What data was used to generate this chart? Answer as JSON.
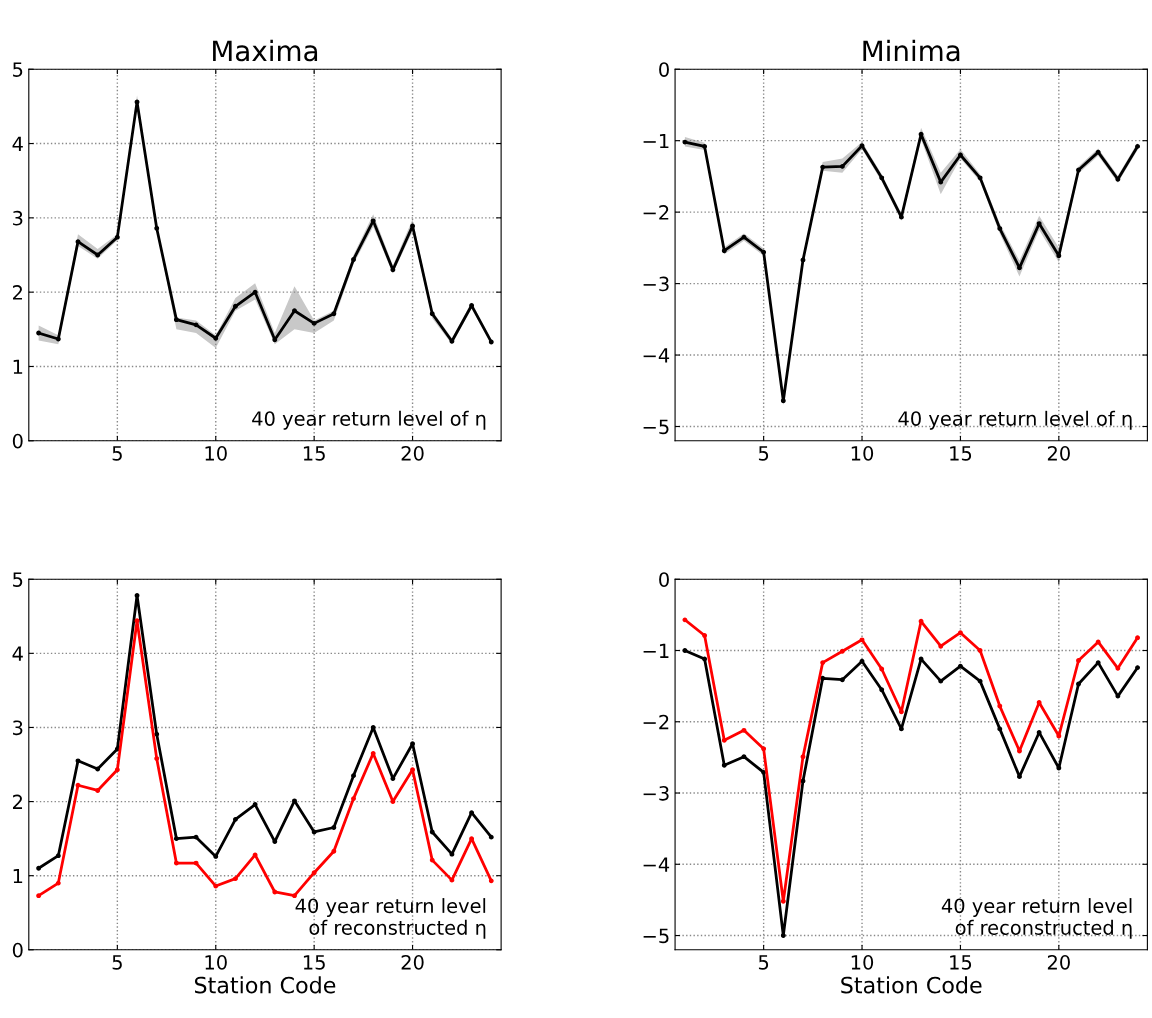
{
  "chart_data": [
    {
      "type": "line",
      "title": "Maxima",
      "x": [
        1,
        2,
        3,
        4,
        5,
        6,
        7,
        8,
        9,
        10,
        11,
        12,
        13,
        14,
        15,
        16,
        17,
        18,
        19,
        20,
        21,
        22,
        23,
        24
      ],
      "xlim": [
        0.5,
        24.5
      ],
      "xticks": [
        5,
        10,
        15,
        20
      ],
      "ylim": [
        0,
        5
      ],
      "yticks": [
        0,
        1,
        2,
        3,
        4,
        5
      ],
      "grid": true,
      "marker": "circle",
      "line_style": "solid",
      "annotations": [
        "40 year return level of η"
      ],
      "series": [
        {
          "color": "#000000",
          "values": [
            1.45,
            1.37,
            2.68,
            2.5,
            2.74,
            4.56,
            2.86,
            1.63,
            1.56,
            1.38,
            1.81,
            2.0,
            1.36,
            1.75,
            1.58,
            1.71,
            2.44,
            2.96,
            2.3,
            2.89,
            1.71,
            1.34,
            1.82,
            1.33
          ],
          "lower": [
            1.35,
            1.3,
            2.62,
            2.45,
            2.7,
            4.5,
            2.83,
            1.5,
            1.45,
            1.25,
            1.75,
            1.9,
            1.3,
            1.5,
            1.45,
            1.62,
            2.38,
            2.88,
            2.25,
            2.82,
            1.65,
            1.3,
            1.78,
            1.3
          ],
          "upper": [
            1.55,
            1.42,
            2.78,
            2.58,
            2.78,
            4.65,
            2.9,
            1.66,
            1.62,
            1.42,
            1.92,
            2.12,
            1.45,
            2.08,
            1.62,
            1.75,
            2.5,
            3.05,
            2.36,
            2.98,
            1.75,
            1.38,
            1.86,
            1.36
          ]
        }
      ]
    },
    {
      "type": "line",
      "title": "Minima",
      "x": [
        1,
        2,
        3,
        4,
        5,
        6,
        7,
        8,
        9,
        10,
        11,
        12,
        13,
        14,
        15,
        16,
        17,
        18,
        19,
        20,
        21,
        22,
        23,
        24
      ],
      "xlim": [
        0.5,
        24.5
      ],
      "xticks": [
        5,
        10,
        15,
        20
      ],
      "ylim": [
        -5.2,
        0
      ],
      "yticks": [
        -5,
        -4,
        -3,
        -2,
        -1,
        0
      ],
      "grid": true,
      "marker": "circle",
      "line_style": "solid",
      "annotations": [
        "40 year return level of η"
      ],
      "series": [
        {
          "color": "#000000",
          "values": [
            -1.02,
            -1.08,
            -2.54,
            -2.35,
            -2.56,
            -4.64,
            -2.67,
            -1.37,
            -1.36,
            -1.07,
            -1.52,
            -2.07,
            -0.91,
            -1.58,
            -1.2,
            -1.52,
            -2.23,
            -2.78,
            -2.16,
            -2.61,
            -1.41,
            -1.16,
            -1.54,
            -1.08
          ],
          "lower": [
            -1.08,
            -1.13,
            -2.59,
            -2.4,
            -2.61,
            -4.7,
            -2.72,
            -1.42,
            -1.45,
            -1.12,
            -1.57,
            -2.12,
            -0.98,
            -1.75,
            -1.25,
            -1.57,
            -2.3,
            -2.9,
            -2.25,
            -2.7,
            -1.46,
            -1.21,
            -1.59,
            -1.13
          ],
          "upper": [
            -0.95,
            -1.03,
            -2.49,
            -2.3,
            -2.51,
            -4.58,
            -2.62,
            -1.3,
            -1.25,
            -1.02,
            -1.47,
            -2.02,
            -0.82,
            -1.45,
            -1.12,
            -1.47,
            -2.16,
            -2.68,
            -2.05,
            -2.5,
            -1.36,
            -1.11,
            -1.49,
            -1.03
          ]
        }
      ]
    },
    {
      "type": "line",
      "xlabel": "Station Code",
      "x": [
        1,
        2,
        3,
        4,
        5,
        6,
        7,
        8,
        9,
        10,
        11,
        12,
        13,
        14,
        15,
        16,
        17,
        18,
        19,
        20,
        21,
        22,
        23,
        24
      ],
      "xlim": [
        0.5,
        24.5
      ],
      "xticks": [
        5,
        10,
        15,
        20
      ],
      "ylim": [
        0,
        5
      ],
      "yticks": [
        0,
        1,
        2,
        3,
        4,
        5
      ],
      "grid": true,
      "marker": "circle",
      "line_style": "solid",
      "annotations": [
        "40 year return level\nof reconstructed η"
      ],
      "series": [
        {
          "color": "#000000",
          "values": [
            1.1,
            1.27,
            2.55,
            2.44,
            2.71,
            4.78,
            2.91,
            1.5,
            1.52,
            1.26,
            1.76,
            1.96,
            1.46,
            2.01,
            1.59,
            1.65,
            2.35,
            3.0,
            2.31,
            2.78,
            1.59,
            1.29,
            1.85,
            1.52
          ]
        },
        {
          "color": "#ff0000",
          "values": [
            0.73,
            0.9,
            2.22,
            2.15,
            2.43,
            4.44,
            2.58,
            1.17,
            1.17,
            0.86,
            0.96,
            1.28,
            0.78,
            0.73,
            1.04,
            1.33,
            2.04,
            2.65,
            2.0,
            2.43,
            1.21,
            0.94,
            1.5,
            0.93
          ]
        }
      ]
    },
    {
      "type": "line",
      "xlabel": "Station Code",
      "x": [
        1,
        2,
        3,
        4,
        5,
        6,
        7,
        8,
        9,
        10,
        11,
        12,
        13,
        14,
        15,
        16,
        17,
        18,
        19,
        20,
        21,
        22,
        23,
        24
      ],
      "xlim": [
        0.5,
        24.5
      ],
      "xticks": [
        5,
        10,
        15,
        20
      ],
      "ylim": [
        -5.2,
        0
      ],
      "yticks": [
        -5,
        -4,
        -3,
        -2,
        -1,
        0
      ],
      "grid": true,
      "marker": "circle",
      "line_style": "solid",
      "annotations": [
        "40 year return level\nof reconstructed η"
      ],
      "series": [
        {
          "color": "#000000",
          "values": [
            -1.0,
            -1.12,
            -2.61,
            -2.49,
            -2.71,
            -5.0,
            -2.83,
            -1.39,
            -1.41,
            -1.15,
            -1.55,
            -2.1,
            -1.12,
            -1.43,
            -1.22,
            -1.43,
            -2.1,
            -2.77,
            -2.15,
            -2.65,
            -1.47,
            -1.17,
            -1.64,
            -1.24
          ]
        },
        {
          "color": "#ff0000",
          "values": [
            -0.57,
            -0.79,
            -2.26,
            -2.12,
            -2.38,
            -4.52,
            -2.49,
            -1.17,
            -1.01,
            -0.85,
            -1.26,
            -1.86,
            -0.59,
            -0.94,
            -0.75,
            -1.0,
            -1.78,
            -2.41,
            -1.73,
            -2.2,
            -1.14,
            -0.88,
            -1.25,
            -0.82
          ]
        }
      ]
    }
  ]
}
